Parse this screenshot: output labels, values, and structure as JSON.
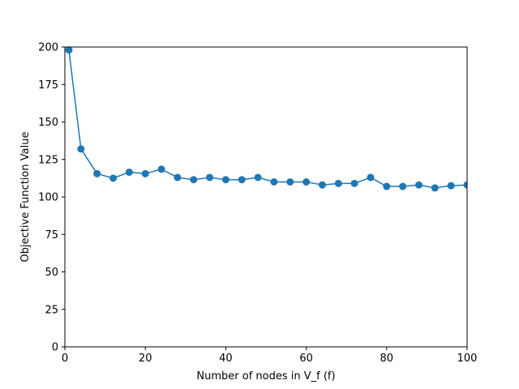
{
  "chart_data": {
    "type": "line",
    "title": "",
    "xlabel": "Number of nodes in V_f (f)",
    "ylabel": "Objective Function Value",
    "xlim": [
      0,
      100
    ],
    "ylim": [
      0,
      200
    ],
    "xticks": [
      0,
      20,
      40,
      60,
      80,
      100
    ],
    "yticks": [
      0,
      25,
      50,
      75,
      100,
      125,
      150,
      175,
      200
    ],
    "grid": false,
    "marker": "circle",
    "series": [
      {
        "color": "#1f77b4",
        "x": [
          1,
          4,
          8,
          12,
          16,
          20,
          24,
          28,
          32,
          36,
          40,
          44,
          48,
          52,
          56,
          60,
          64,
          68,
          72,
          76,
          80,
          84,
          88,
          92,
          96,
          100
        ],
        "y": [
          198,
          132,
          115.5,
          112.5,
          116.5,
          115.5,
          118.5,
          113,
          111.5,
          113,
          111.5,
          111.5,
          113,
          110,
          110,
          110,
          108,
          109,
          109,
          113,
          107,
          107,
          108,
          106,
          107.5,
          108
        ]
      }
    ]
  }
}
